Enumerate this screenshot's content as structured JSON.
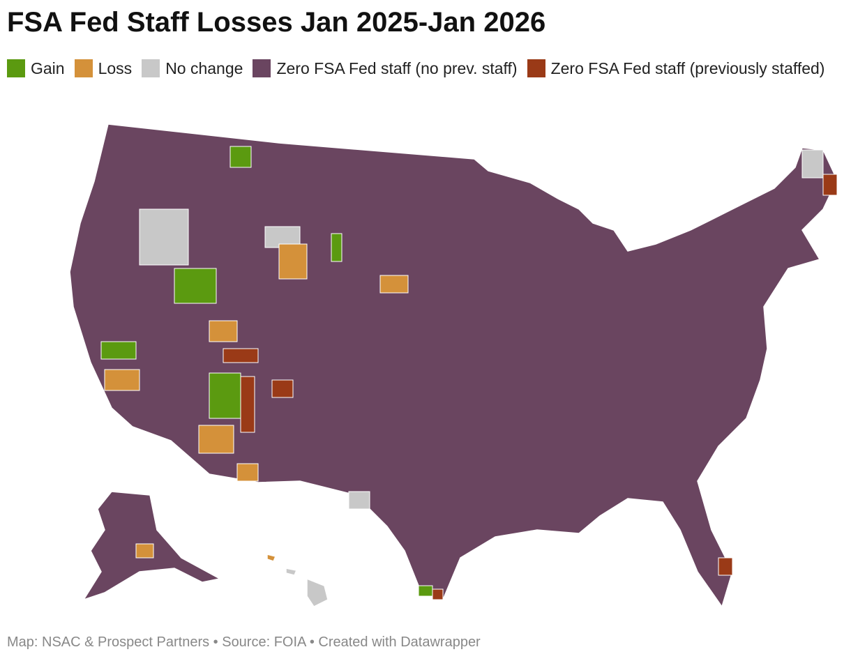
{
  "header": {
    "title": "FSA Fed Staff Losses Jan 2025-Jan 2026"
  },
  "legend": [
    {
      "label": "Gain",
      "color": "#5b9a10"
    },
    {
      "label": "Loss",
      "color": "#d4913a"
    },
    {
      "label": "No change",
      "color": "#c8c8c8"
    },
    {
      "label": "Zero FSA Fed staff (no prev. staff)",
      "color": "#6a4560"
    },
    {
      "label": "Zero FSA Fed staff (previously staffed)",
      "color": "#9a3a17"
    }
  ],
  "footer": "Map: NSAC & Prospect Partners • Source: FOIA • Created with Datawrapper"
}
